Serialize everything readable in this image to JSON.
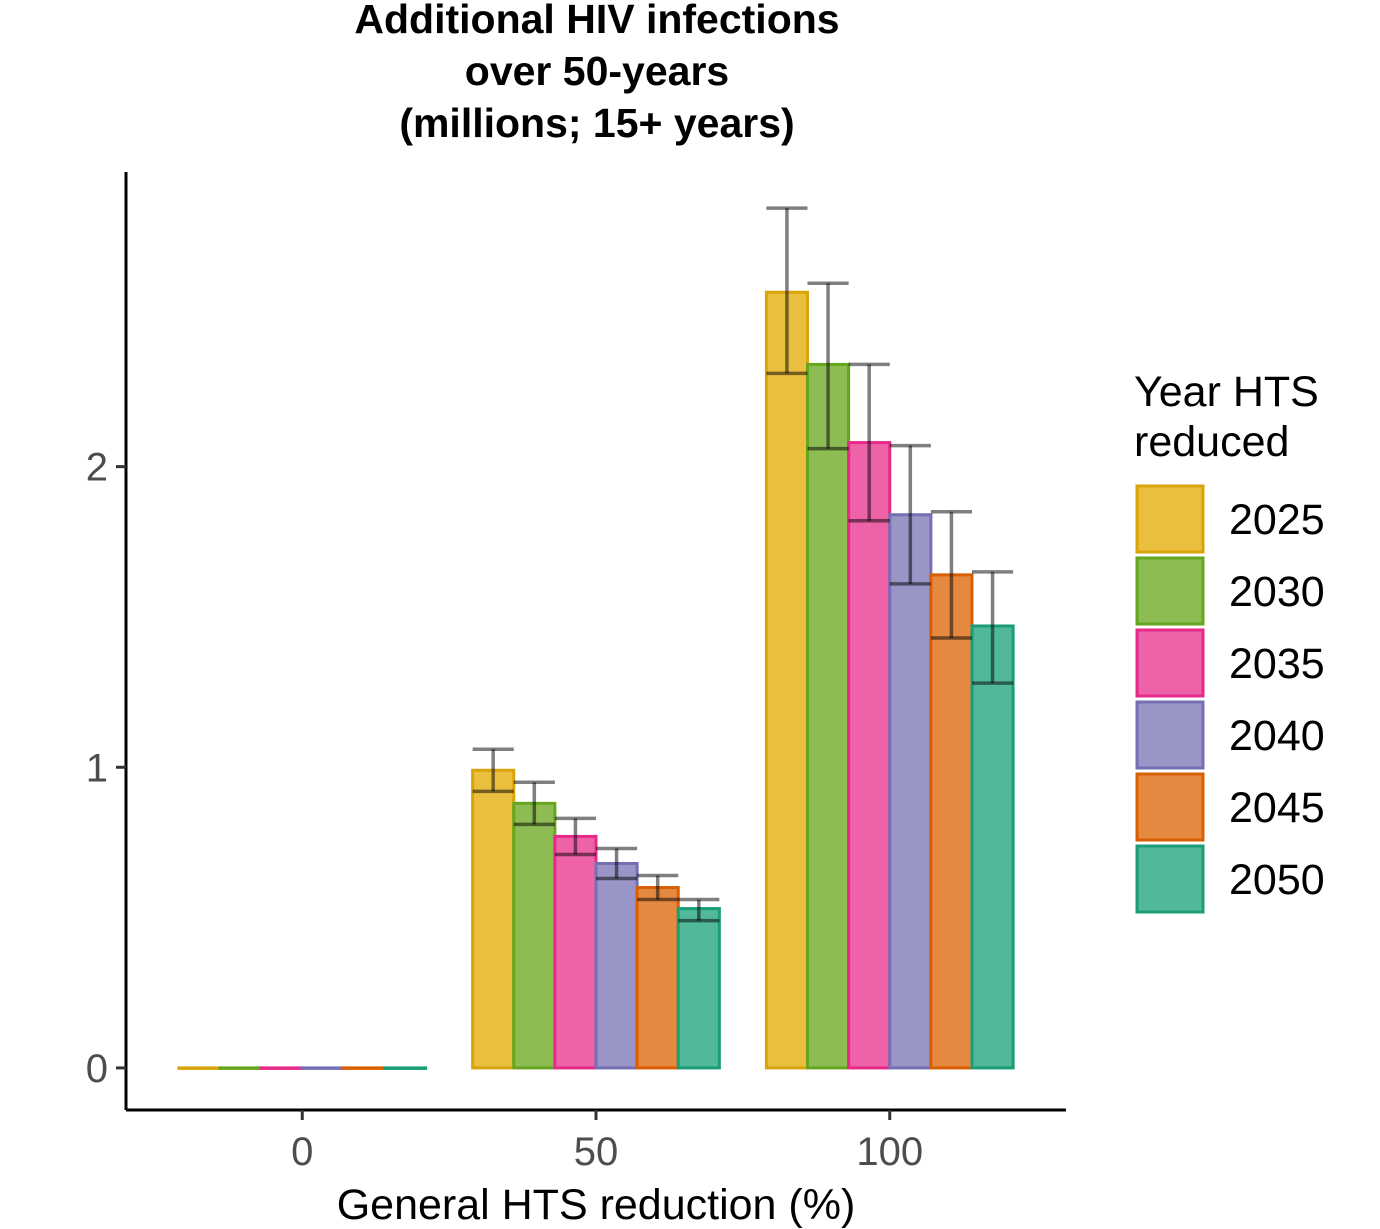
{
  "chart_data": {
    "type": "bar",
    "title_lines": [
      "Additional HIV infections",
      "over 50-years",
      "(millions; 15+ years)"
    ],
    "xlabel": "General HTS reduction (%)",
    "ylabel": "",
    "categories": [
      "0",
      "50",
      "100"
    ],
    "x_ticks": [
      0,
      50,
      100
    ],
    "y_ticks": [
      0,
      1,
      2
    ],
    "ylim": [
      -0.14,
      2.98
    ],
    "xlim": [
      -30,
      130
    ],
    "grid": false,
    "legend_position": "right",
    "legend_title_lines": [
      "Year HTS",
      "reduced"
    ],
    "series": [
      {
        "name": "2025",
        "fill": "#ebbf3e",
        "stroke": "#d9a30a",
        "values": [
          0,
          0.99,
          2.58
        ],
        "lower": [
          0,
          0.92,
          2.31
        ],
        "upper": [
          0,
          1.06,
          2.86
        ]
      },
      {
        "name": "2030",
        "fill": "#8dbb54",
        "stroke": "#66a61e",
        "values": [
          0,
          0.88,
          2.34
        ],
        "lower": [
          0,
          0.81,
          2.06
        ],
        "upper": [
          0,
          0.95,
          2.61
        ]
      },
      {
        "name": "2035",
        "fill": "#ee62a8",
        "stroke": "#e7298a",
        "values": [
          0,
          0.77,
          2.08
        ],
        "lower": [
          0,
          0.71,
          1.82
        ],
        "upper": [
          0,
          0.83,
          2.34
        ]
      },
      {
        "name": "2040",
        "fill": "#9995c6",
        "stroke": "#7570b3",
        "values": [
          0,
          0.68,
          1.84
        ],
        "lower": [
          0,
          0.63,
          1.61
        ],
        "upper": [
          0,
          0.73,
          2.07
        ]
      },
      {
        "name": "2045",
        "fill": "#e58840",
        "stroke": "#d95f02",
        "values": [
          0,
          0.6,
          1.64
        ],
        "lower": [
          0,
          0.56,
          1.43
        ],
        "upper": [
          0,
          0.64,
          1.85
        ]
      },
      {
        "name": "2050",
        "fill": "#52b89a",
        "stroke": "#1b9e77",
        "values": [
          0,
          0.53,
          1.47
        ],
        "lower": [
          0,
          0.49,
          1.28
        ],
        "upper": [
          0,
          0.56,
          1.65
        ]
      }
    ]
  }
}
